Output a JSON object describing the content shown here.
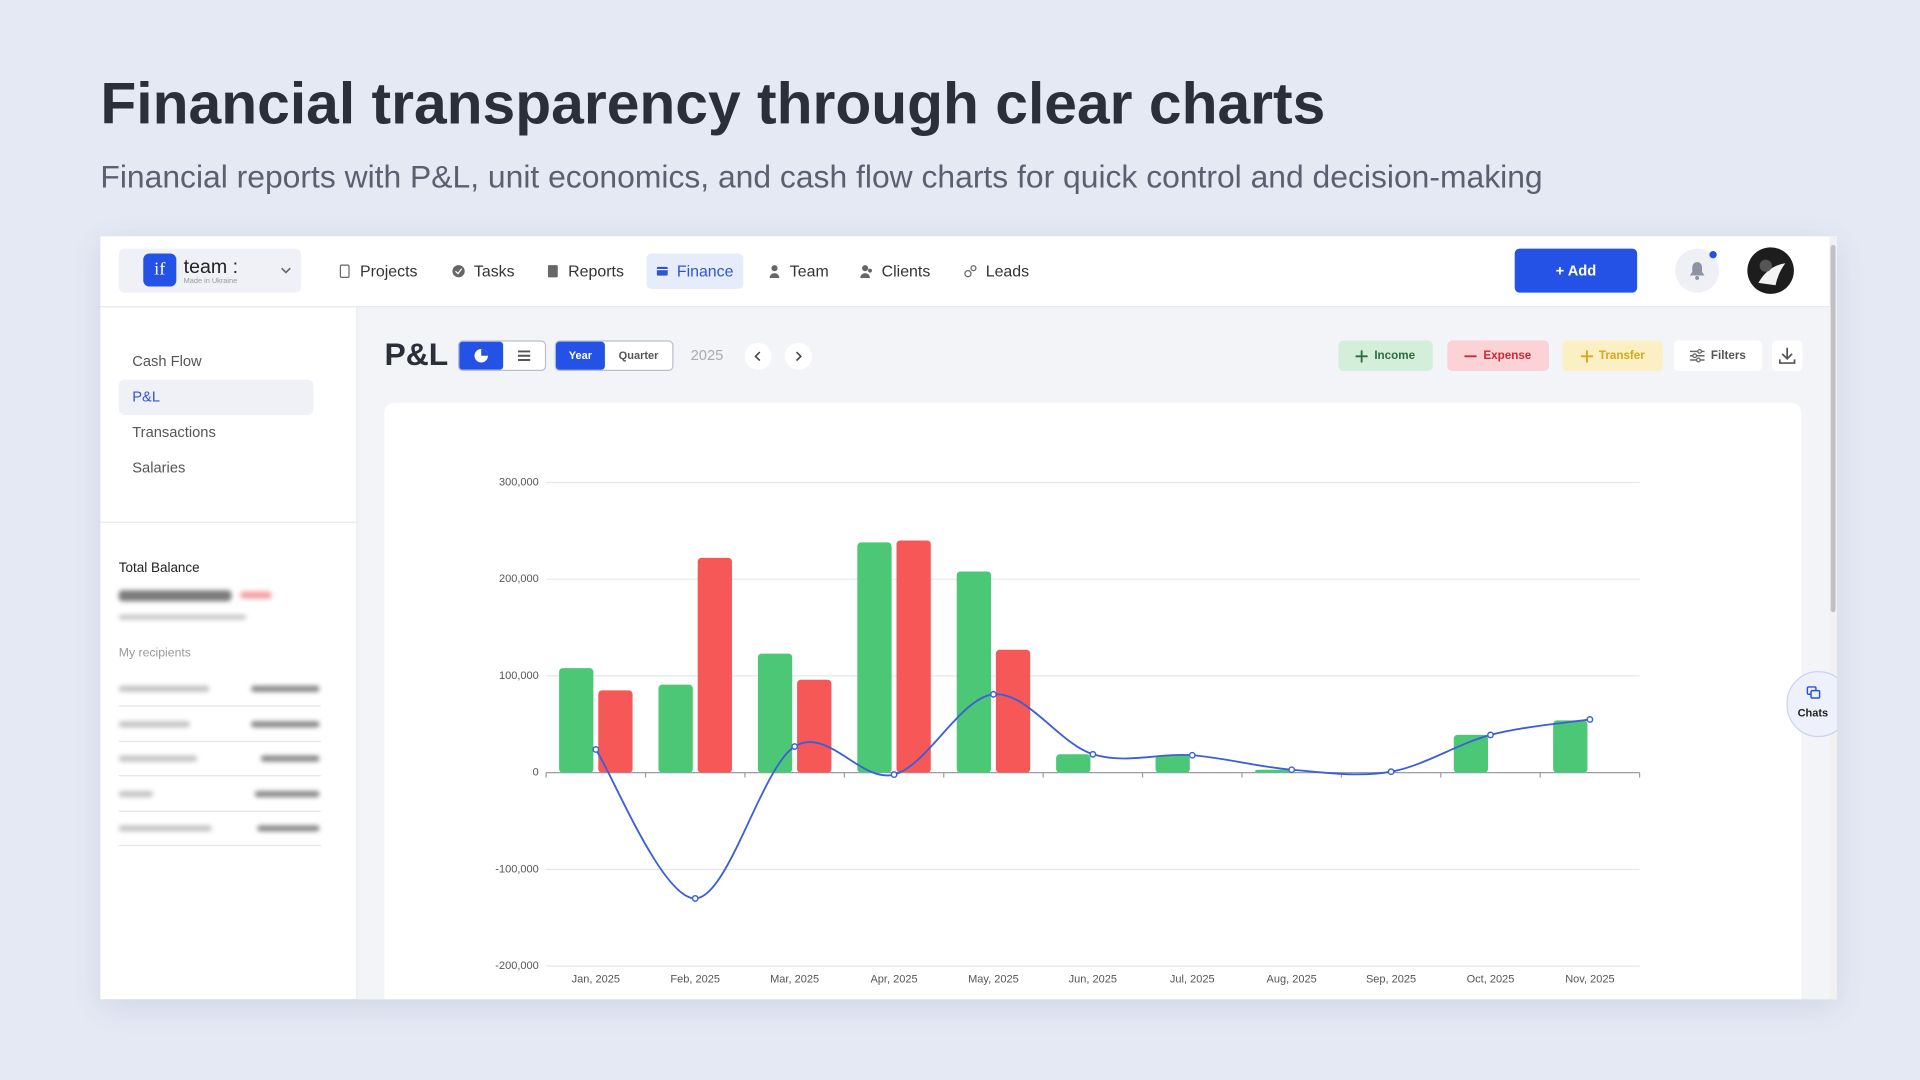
{
  "header": {
    "title": "Financial transparency through clear charts",
    "subtitle": "Financial reports with P&L, unit economics, and cash flow charts for quick control and decision-making"
  },
  "app": {
    "logo": {
      "mark": "if",
      "name": "team :",
      "tagline": "Made in Ukraine"
    },
    "nav": [
      "Projects",
      "Tasks",
      "Reports",
      "Finance",
      "Team",
      "Clients",
      "Leads"
    ],
    "add_button": "+ Add",
    "sidebar": {
      "menu": [
        "Cash Flow",
        "P&L",
        "Transactions",
        "Salaries"
      ],
      "balance_label": "Total Balance",
      "recipients_label": "My recipients"
    },
    "toolbar": {
      "title": "P&L",
      "periods": [
        "Year",
        "Quarter"
      ],
      "year": "2025",
      "actions": [
        "Income",
        "Expense",
        "Transfer",
        "Filters"
      ]
    },
    "chats": "Chats"
  },
  "chart_data": {
    "type": "bar",
    "categories": [
      "Jan, 2025",
      "Feb, 2025",
      "Mar, 2025",
      "Apr, 2025",
      "May, 2025",
      "Jun, 2025",
      "Jul, 2025",
      "Aug, 2025",
      "Sep, 2025",
      "Oct, 2025",
      "Nov, 2025"
    ],
    "series": [
      {
        "color": "#4cc776",
        "values": [
          108000,
          91000,
          123000,
          238000,
          208000,
          19000,
          18000,
          3000,
          0,
          39000,
          54000
        ]
      },
      {
        "color": "#f65757",
        "values": [
          85000,
          222000,
          96000,
          240000,
          127000,
          0,
          0,
          0,
          0,
          0,
          0
        ]
      },
      {
        "type": "line",
        "color": "#3b5fd9",
        "values": [
          24000,
          -130000,
          27000,
          -2000,
          81000,
          19000,
          18000,
          3000,
          1000,
          39000,
          55000
        ]
      }
    ],
    "ylim": [
      -200000,
      300000
    ],
    "yticks": [
      {
        "value": -200000,
        "label": "-200,000"
      },
      {
        "value": -100000,
        "label": "-100,000"
      },
      0,
      {
        "value": 100000,
        "label": "100,000"
      },
      {
        "value": 200000,
        "label": "200,000"
      },
      {
        "value": 300000,
        "label": "300,000"
      }
    ],
    "grid": true
  }
}
